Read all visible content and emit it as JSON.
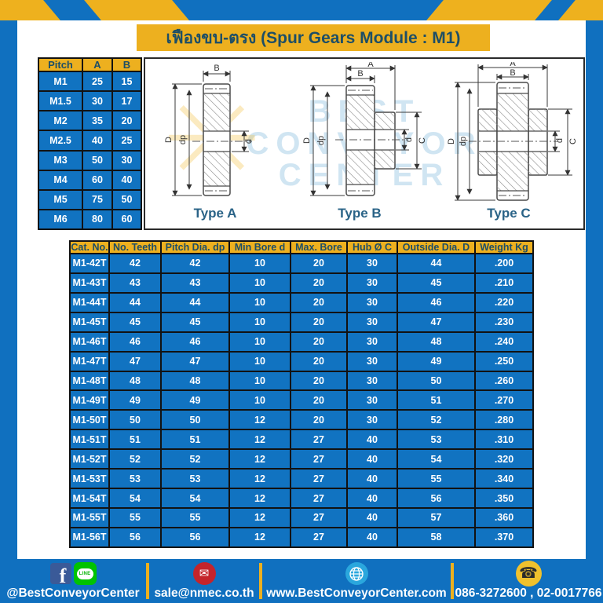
{
  "page": {
    "title": "เฟืองขบ-ตรง (Spur Gears Module : M1)"
  },
  "pitch_table": {
    "headers": [
      "Pitch",
      "A",
      "B"
    ],
    "rows": [
      [
        "M1",
        "25",
        "15"
      ],
      [
        "M1.5",
        "30",
        "17"
      ],
      [
        "M2",
        "35",
        "20"
      ],
      [
        "M2.5",
        "40",
        "25"
      ],
      [
        "M3",
        "50",
        "30"
      ],
      [
        "M4",
        "60",
        "40"
      ],
      [
        "M5",
        "75",
        "50"
      ],
      [
        "M6",
        "80",
        "60"
      ]
    ]
  },
  "drawings": {
    "watermark": {
      "lines": [
        "BEST",
        "CONVEYOR",
        "CENTER"
      ]
    },
    "types": [
      "Type A",
      "Type B",
      "Type C"
    ],
    "dims": {
      "a": "A",
      "b": "B",
      "d_outer": "D",
      "dp": "dp",
      "d_bore": "d",
      "c": "C"
    }
  },
  "main_table": {
    "headers": [
      "Cat. No.",
      "No. Teeth",
      "Pitch Dia. dp",
      "Min Bore d",
      "Max. Bore",
      "Hub Ø C",
      "Outside Dia. D",
      "Weight Kg"
    ],
    "rows": [
      [
        "M1-42T",
        "42",
        "42",
        "10",
        "20",
        "30",
        "44",
        ".200"
      ],
      [
        "M1-43T",
        "43",
        "43",
        "10",
        "20",
        "30",
        "45",
        ".210"
      ],
      [
        "M1-44T",
        "44",
        "44",
        "10",
        "20",
        "30",
        "46",
        ".220"
      ],
      [
        "M1-45T",
        "45",
        "45",
        "10",
        "20",
        "30",
        "47",
        ".230"
      ],
      [
        "M1-46T",
        "46",
        "46",
        "10",
        "20",
        "30",
        "48",
        ".240"
      ],
      [
        "M1-47T",
        "47",
        "47",
        "10",
        "20",
        "30",
        "49",
        ".250"
      ],
      [
        "M1-48T",
        "48",
        "48",
        "10",
        "20",
        "30",
        "50",
        ".260"
      ],
      [
        "M1-49T",
        "49",
        "49",
        "10",
        "20",
        "30",
        "51",
        ".270"
      ],
      [
        "M1-50T",
        "50",
        "50",
        "12",
        "20",
        "30",
        "52",
        ".280"
      ],
      [
        "M1-51T",
        "51",
        "51",
        "12",
        "27",
        "40",
        "53",
        ".310"
      ],
      [
        "M1-52T",
        "52",
        "52",
        "12",
        "27",
        "40",
        "54",
        ".320"
      ],
      [
        "M1-53T",
        "53",
        "53",
        "12",
        "27",
        "40",
        "55",
        ".340"
      ],
      [
        "M1-54T",
        "54",
        "54",
        "12",
        "27",
        "40",
        "56",
        ".350"
      ],
      [
        "M1-55T",
        "55",
        "55",
        "12",
        "27",
        "40",
        "57",
        ".360"
      ],
      [
        "M1-56T",
        "56",
        "56",
        "12",
        "27",
        "40",
        "58",
        ".370"
      ]
    ]
  },
  "footer": {
    "facebook_line": {
      "label": "@BestConveyorCenter"
    },
    "email": {
      "label": "sale@nmec.co.th"
    },
    "website": {
      "label": "www.BestConveyorCenter.com"
    },
    "phone": {
      "label": "086-3272600 , 02-0017766"
    },
    "line_icon_text": "LINE"
  },
  "colors": {
    "background_blue": "#1070BF",
    "cell_blue": "#1173C1",
    "accent_yellow": "#EDB01F",
    "dark_text": "#1D4E66",
    "drawing_label": "#2A6387",
    "line_green": "#00C300",
    "email_red": "#C4242B",
    "globe_blue": "#2AA7DD",
    "facebook_blue": "#3A5A98"
  }
}
